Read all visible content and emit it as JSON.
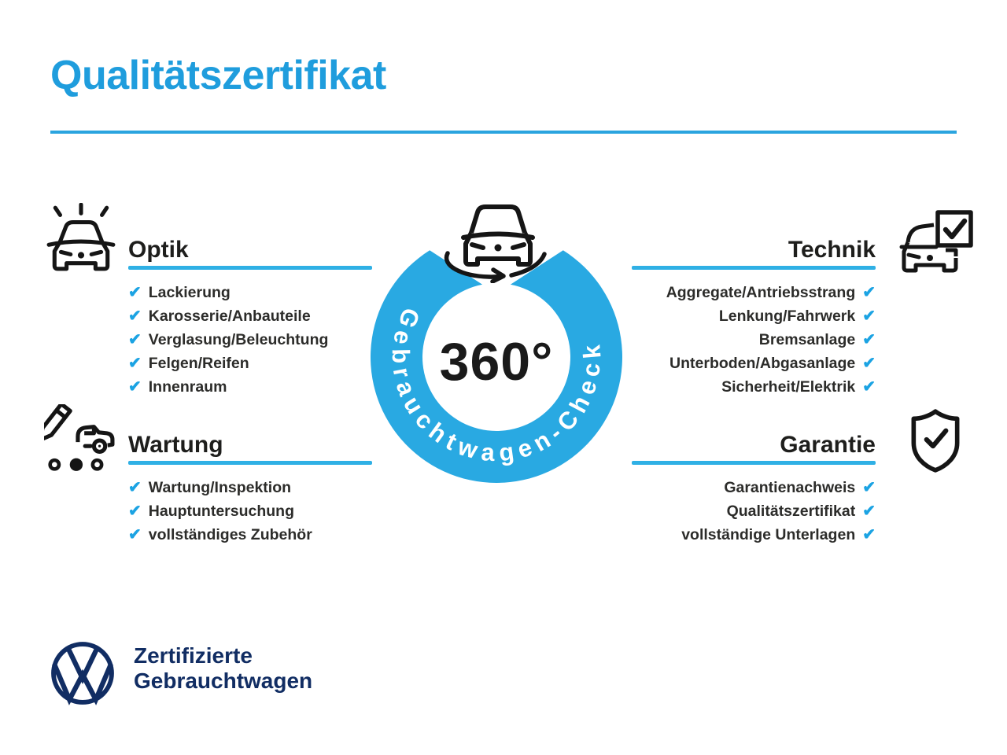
{
  "title": "Qualitätszertifikat",
  "checkmark": "✔",
  "colors": {
    "title_blue": "#1f9ddd",
    "line_cyan": "#2fb0e5",
    "ring_cyan": "#29a9e2",
    "check_blue": "#1ba3e3",
    "navy": "#112d63",
    "ink": "#1e1e1c"
  },
  "center": {
    "value": "360°",
    "ring_label": "Gebrauchtwagen-Check",
    "icon": "car-rotation-icon"
  },
  "sections": [
    {
      "id": "optik",
      "title": "Optik",
      "side": "left",
      "icon": "shiny-car-icon",
      "items": [
        "Lackierung",
        "Karosserie/Anbauteile",
        "Verglasung/Beleuchtung",
        "Felgen/Reifen",
        "Innenraum"
      ]
    },
    {
      "id": "wartung",
      "title": "Wartung",
      "side": "left",
      "icon": "service-pencil-car-icon",
      "items": [
        "Wartung/Inspektion",
        "Hauptuntersuchung",
        "vollständiges Zubehör"
      ]
    },
    {
      "id": "technik",
      "title": "Technik",
      "side": "right",
      "icon": "car-checkbox-icon",
      "items": [
        "Aggregate/Antriebsstrang",
        "Lenkung/Fahrwerk",
        "Bremsanlage",
        "Unterboden/Abgasanlage",
        "Sicherheit/Elektrik"
      ]
    },
    {
      "id": "garantie",
      "title": "Garantie",
      "side": "right",
      "icon": "shield-check-icon",
      "items": [
        "Garantienachweis",
        "Qualitätszertifikat",
        "vollständige Unterlagen"
      ]
    }
  ],
  "footer": {
    "brand": "Volkswagen",
    "line1": "Zertifizierte",
    "line2": "Gebrauchtwagen"
  }
}
